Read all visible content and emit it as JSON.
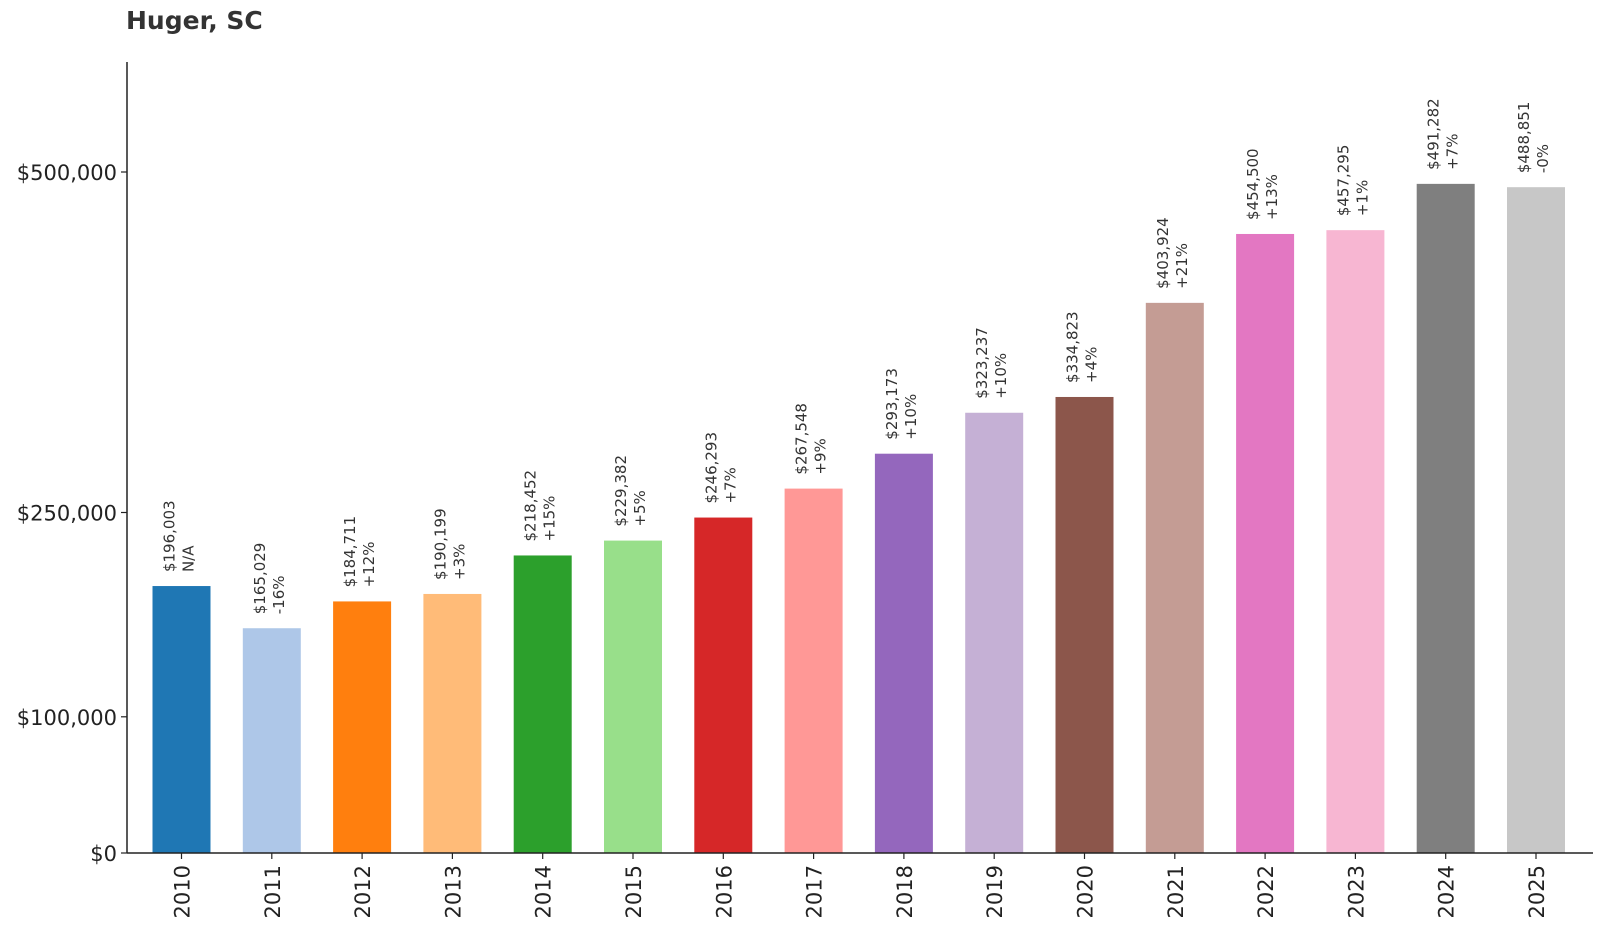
{
  "chart_data": {
    "type": "bar",
    "title": "Huger, SC",
    "xlabel": "",
    "ylabel": "",
    "categories": [
      "2010",
      "2011",
      "2012",
      "2013",
      "2014",
      "2015",
      "2016",
      "2017",
      "2018",
      "2019",
      "2020",
      "2021",
      "2022",
      "2023",
      "2024",
      "2025"
    ],
    "values": [
      196003,
      165029,
      184711,
      190199,
      218452,
      229382,
      246293,
      267548,
      293173,
      323237,
      334823,
      403924,
      454500,
      457295,
      491282,
      488851
    ],
    "value_labels": [
      "$196,003",
      "$165,029",
      "$184,711",
      "$190,199",
      "$218,452",
      "$229,382",
      "$246,293",
      "$267,548",
      "$293,173",
      "$323,237",
      "$334,823",
      "$403,924",
      "$454,500",
      "$457,295",
      "$491,282",
      "$488,851"
    ],
    "change_labels": [
      "N/A",
      "-16%",
      "+12%",
      "+3%",
      "+15%",
      "+5%",
      "+7%",
      "+9%",
      "+10%",
      "+10%",
      "+4%",
      "+21%",
      "+13%",
      "+1%",
      "+7%",
      "-0%"
    ],
    "colors": [
      "#1f77b4",
      "#aec7e8",
      "#ff7f0e",
      "#ffbb78",
      "#2ca02c",
      "#98df8a",
      "#d62728",
      "#ff9896",
      "#9467bd",
      "#c5b0d5",
      "#8c564b",
      "#c49c94",
      "#e377c2",
      "#f7b6d2",
      "#7f7f7f",
      "#c7c7c7"
    ],
    "yticks": [
      0,
      100000,
      250000,
      500000
    ],
    "ytick_labels": [
      "$0",
      "$100,000",
      "$250,000",
      "$500,000"
    ],
    "ylim": [
      0,
      580000
    ],
    "grid": false,
    "legend": "none"
  }
}
